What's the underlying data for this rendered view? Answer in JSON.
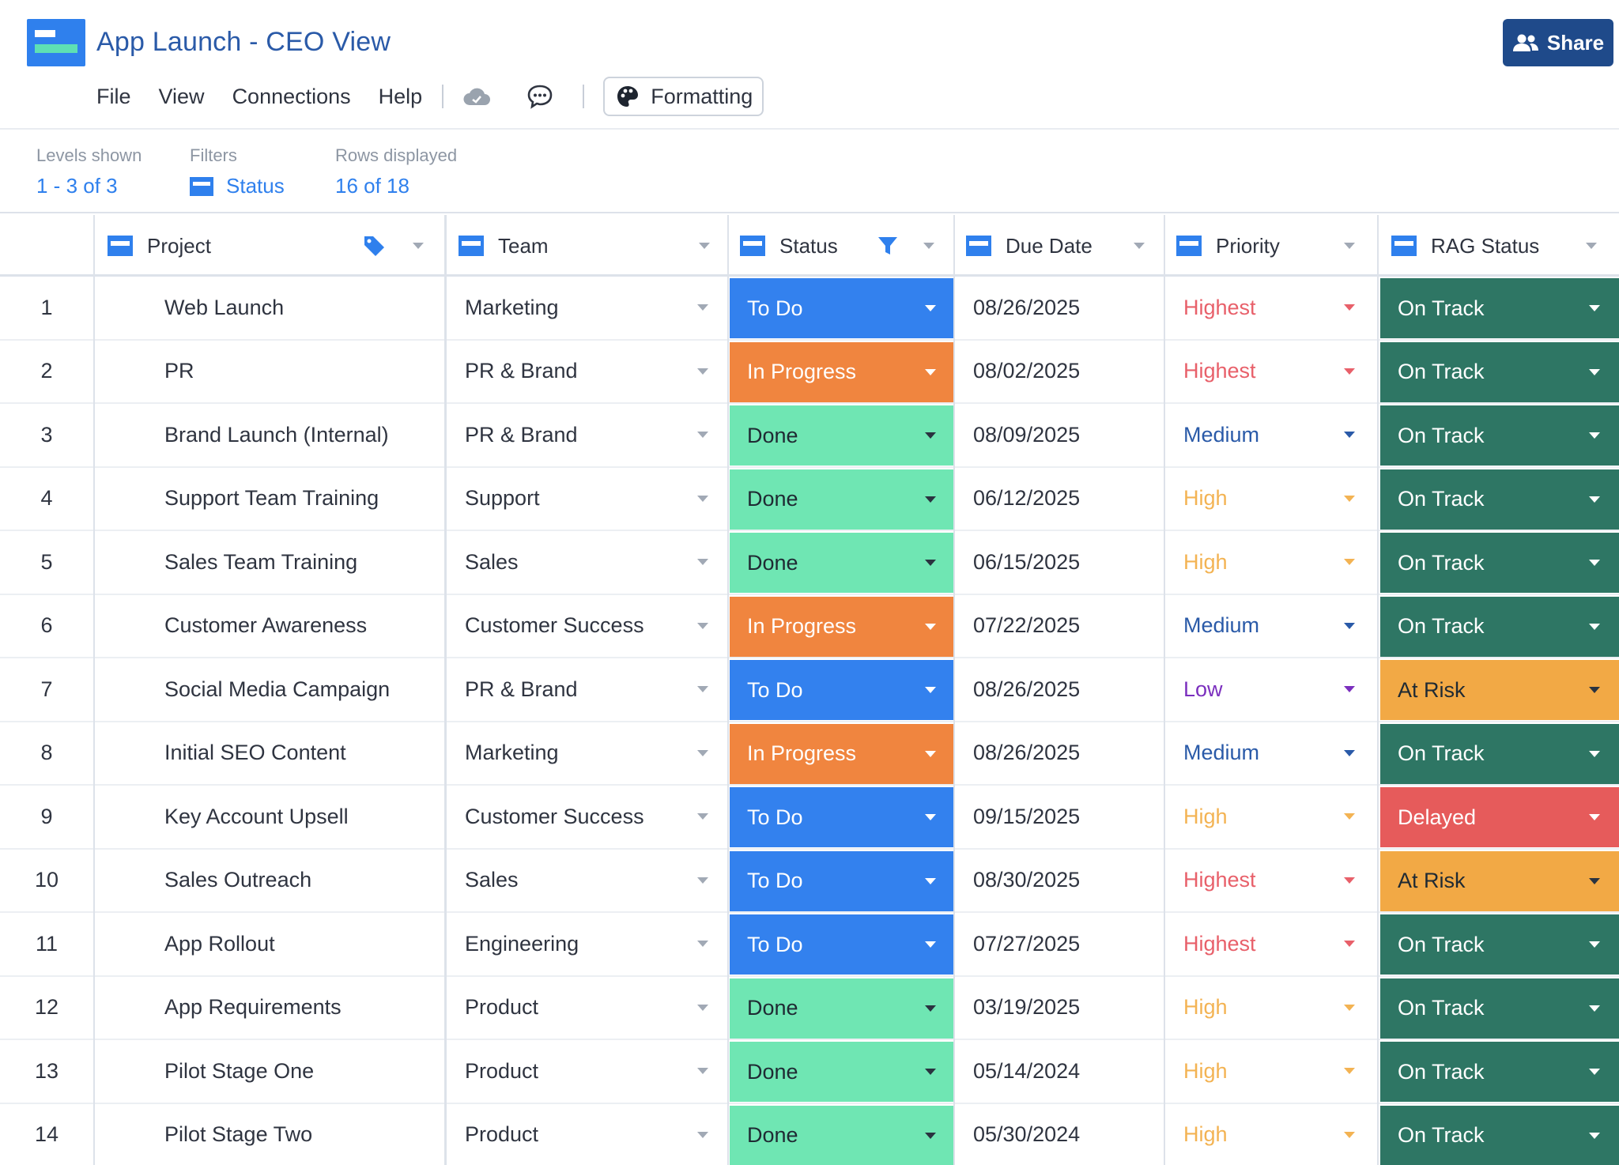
{
  "header": {
    "title": "App Launch - CEO View",
    "menu": [
      "File",
      "View",
      "Connections",
      "Help"
    ],
    "formatting_label": "Formatting",
    "share_label": "Share",
    "icons": {
      "cloud": "cloud-icon",
      "comment": "comment-icon",
      "palette": "palette-icon",
      "people": "people-icon"
    }
  },
  "infobar": {
    "levels": {
      "label": "Levels shown",
      "value": "1 - 3 of 3"
    },
    "filters": {
      "label": "Filters",
      "value": "Status"
    },
    "rows": {
      "label": "Rows displayed",
      "value": "16 of 18"
    }
  },
  "columns": [
    "Project",
    "Team",
    "Status",
    "Due Date",
    "Priority",
    "RAG Status"
  ],
  "colors": {
    "status": {
      "To Do": "#3381ee",
      "In Progress": "#f0853f",
      "Done": "#6fe6b3"
    },
    "rag": {
      "On Track": "#2e7664",
      "At Risk": "#f2a945",
      "Delayed": "#e65b5b"
    },
    "priority": {
      "Highest": "#e8606a",
      "High": "#f3b353",
      "Medium": "#2a5aa8",
      "Low": "#7b2fbe"
    }
  },
  "rows": [
    {
      "num": "1",
      "project": "Web Launch",
      "team": "Marketing",
      "status": "To Do",
      "due": "08/26/2025",
      "priority": "Highest",
      "rag": "On Track"
    },
    {
      "num": "2",
      "project": "PR",
      "team": "PR & Brand",
      "status": "In Progress",
      "due": "08/02/2025",
      "priority": "Highest",
      "rag": "On Track"
    },
    {
      "num": "3",
      "project": "Brand Launch (Internal)",
      "team": "PR & Brand",
      "status": "Done",
      "due": "08/09/2025",
      "priority": "Medium",
      "rag": "On Track"
    },
    {
      "num": "4",
      "project": "Support Team Training",
      "team": "Support",
      "status": "Done",
      "due": "06/12/2025",
      "priority": "High",
      "rag": "On Track"
    },
    {
      "num": "5",
      "project": "Sales Team Training",
      "team": "Sales",
      "status": "Done",
      "due": "06/15/2025",
      "priority": "High",
      "rag": "On Track"
    },
    {
      "num": "6",
      "project": "Customer Awareness",
      "team": "Customer Success",
      "status": "In Progress",
      "due": "07/22/2025",
      "priority": "Medium",
      "rag": "On Track"
    },
    {
      "num": "7",
      "project": "Social Media Campaign",
      "team": "PR & Brand",
      "status": "To Do",
      "due": "08/26/2025",
      "priority": "Low",
      "rag": "At Risk"
    },
    {
      "num": "8",
      "project": "Initial SEO Content",
      "team": "Marketing",
      "status": "In Progress",
      "due": "08/26/2025",
      "priority": "Medium",
      "rag": "On Track"
    },
    {
      "num": "9",
      "project": "Key Account Upsell",
      "team": "Customer Success",
      "status": "To Do",
      "due": "09/15/2025",
      "priority": "High",
      "rag": "Delayed"
    },
    {
      "num": "10",
      "project": "Sales Outreach",
      "team": "Sales",
      "status": "To Do",
      "due": "08/30/2025",
      "priority": "Highest",
      "rag": "At Risk"
    },
    {
      "num": "11",
      "project": "App Rollout",
      "team": "Engineering",
      "status": "To Do",
      "due": "07/27/2025",
      "priority": "Highest",
      "rag": "On Track"
    },
    {
      "num": "12",
      "project": "App Requirements",
      "team": "Product",
      "status": "Done",
      "due": "03/19/2025",
      "priority": "High",
      "rag": "On Track"
    },
    {
      "num": "13",
      "project": "Pilot Stage One",
      "team": "Product",
      "status": "Done",
      "due": "05/14/2024",
      "priority": "High",
      "rag": "On Track"
    },
    {
      "num": "14",
      "project": "Pilot Stage Two",
      "team": "Product",
      "status": "Done",
      "due": "05/30/2024",
      "priority": "High",
      "rag": "On Track"
    }
  ]
}
